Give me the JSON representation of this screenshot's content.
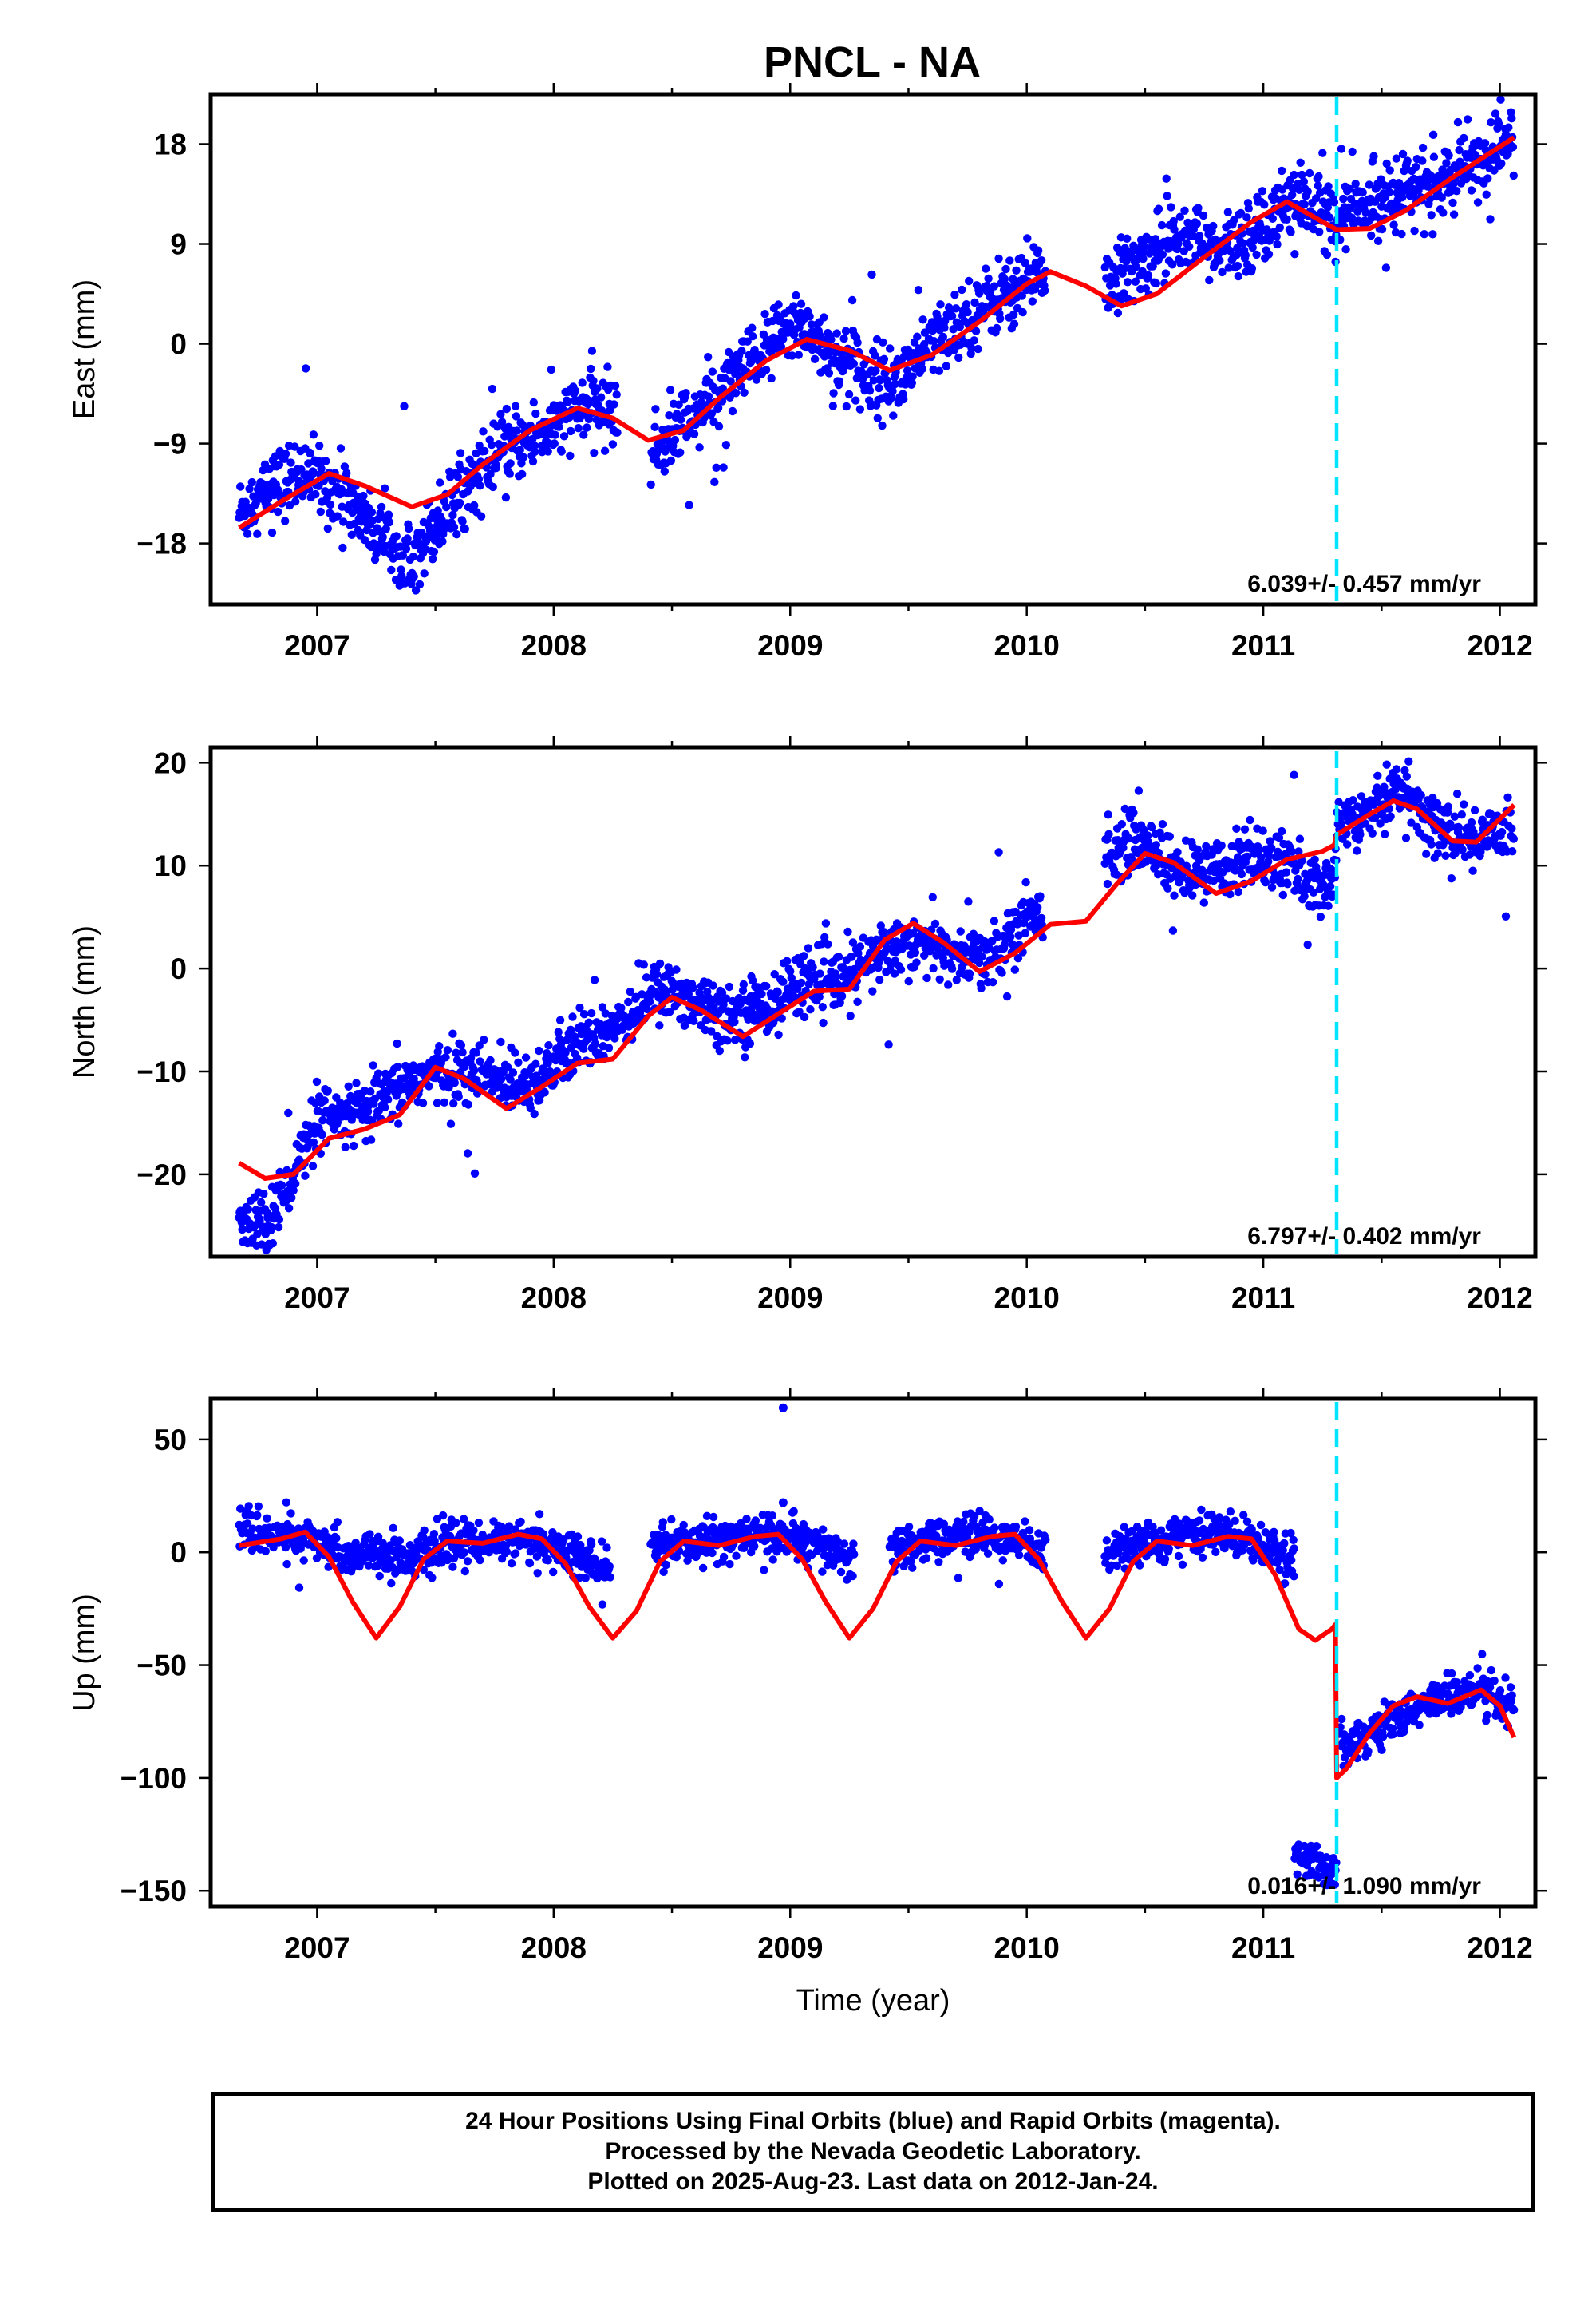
{
  "title": "PNCL - NA",
  "footer": {
    "lines": [
      "24 Hour Positions Using Final Orbits (blue) and Rapid Orbits (magenta).",
      "Processed by the Nevada Geodetic Laboratory.",
      "Plotted on 2025-Aug-23. Last data on 2012-Jan-24."
    ]
  },
  "chart_data": [
    {
      "type": "scatter",
      "name": "east",
      "ylabel": "East (mm)",
      "xlim": [
        2006.55,
        2012.15
      ],
      "ylim": [
        -23.5,
        22.5
      ],
      "yticks": [
        -18,
        -9,
        0,
        9,
        18
      ],
      "xticks": [
        2007,
        2008,
        2009,
        2010,
        2011,
        2012
      ],
      "rate_label": "6.039+/- 0.457 mm/yr",
      "break_x": 2011.31,
      "colors": {
        "points": "#0000ff",
        "fit": "#ff0000",
        "break": "#00e5ff"
      },
      "points_trend": [
        [
          2006.67,
          -15.2
        ],
        [
          2006.8,
          -13.0
        ],
        [
          2006.95,
          -11.5
        ],
        [
          2007.1,
          -13.5
        ],
        [
          2007.25,
          -16.8
        ],
        [
          2007.4,
          -18.8
        ],
        [
          2007.55,
          -15.0
        ],
        [
          2007.7,
          -11.2
        ],
        [
          2007.85,
          -9.0
        ],
        [
          2008.0,
          -7.5
        ],
        [
          2008.15,
          -5.5
        ],
        [
          2008.25,
          -6.0
        ],
        [
          2008.4,
          -10.5
        ],
        [
          2008.5,
          -8.0
        ],
        [
          2008.65,
          -5.5
        ],
        [
          2008.8,
          -2.5
        ],
        [
          2008.95,
          0.5
        ],
        [
          2009.05,
          2.0
        ],
        [
          2009.2,
          -1.5
        ],
        [
          2009.35,
          -3.0
        ],
        [
          2009.45,
          -3.5
        ],
        [
          2009.6,
          0.0
        ],
        [
          2009.75,
          2.5
        ],
        [
          2009.9,
          4.5
        ],
        [
          2010.05,
          6.5
        ],
        [
          2010.2,
          5.0
        ],
        [
          2010.35,
          5.5
        ],
        [
          2010.5,
          7.5
        ],
        [
          2010.65,
          10.5
        ],
        [
          2010.8,
          8.0
        ],
        [
          2010.95,
          10.0
        ],
        [
          2011.1,
          13.0
        ],
        [
          2011.25,
          12.0
        ],
        [
          2011.31,
          11.5
        ],
        [
          2011.45,
          12.5
        ],
        [
          2011.55,
          14.0
        ],
        [
          2011.7,
          14.0
        ],
        [
          2011.85,
          15.5
        ],
        [
          2012.0,
          18.0
        ],
        [
          2012.06,
          18.5
        ]
      ],
      "points_spread": 1.6,
      "gaps": [
        [
          2008.27,
          2008.41
        ],
        [
          2010.08,
          2010.33
        ]
      ],
      "fit": [
        [
          2006.67,
          -16.6
        ],
        [
          2006.85,
          -14.2
        ],
        [
          2007.05,
          -11.7
        ],
        [
          2007.2,
          -12.8
        ],
        [
          2007.4,
          -14.7
        ],
        [
          2007.55,
          -13.6
        ],
        [
          2007.7,
          -10.9
        ],
        [
          2007.9,
          -7.8
        ],
        [
          2008.1,
          -5.8
        ],
        [
          2008.25,
          -6.7
        ],
        [
          2008.4,
          -8.7
        ],
        [
          2008.55,
          -7.8
        ],
        [
          2008.7,
          -4.9
        ],
        [
          2008.9,
          -1.5
        ],
        [
          2009.07,
          0.4
        ],
        [
          2009.25,
          -0.6
        ],
        [
          2009.42,
          -2.4
        ],
        [
          2009.6,
          -1.0
        ],
        [
          2009.8,
          2.0
        ],
        [
          2010.0,
          5.4
        ],
        [
          2010.1,
          6.5
        ],
        [
          2010.25,
          5.2
        ],
        [
          2010.4,
          3.4
        ],
        [
          2010.55,
          4.5
        ],
        [
          2010.75,
          7.8
        ],
        [
          2010.95,
          11.0
        ],
        [
          2011.1,
          12.8
        ],
        [
          2011.25,
          11.0
        ],
        [
          2011.31,
          10.3
        ],
        [
          2011.45,
          10.4
        ],
        [
          2011.6,
          12.0
        ],
        [
          2011.8,
          15.0
        ],
        [
          2012.06,
          18.6
        ]
      ]
    },
    {
      "type": "scatter",
      "name": "north",
      "ylabel": "North (mm)",
      "xlim": [
        2006.55,
        2012.15
      ],
      "ylim": [
        -28,
        21.5
      ],
      "yticks": [
        -20,
        -10,
        0,
        10,
        20
      ],
      "xticks": [
        2007,
        2008,
        2009,
        2010,
        2011,
        2012
      ],
      "rate_label": "6.797+/- 0.402 mm/yr",
      "break_x": 2011.31,
      "colors": {
        "points": "#0000ff",
        "fit": "#ff0000",
        "break": "#00e5ff"
      },
      "points_trend": [
        [
          2006.67,
          -25.0
        ],
        [
          2006.8,
          -24.5
        ],
        [
          2006.9,
          -20.0
        ],
        [
          2007.0,
          -15.0
        ],
        [
          2007.15,
          -14.5
        ],
        [
          2007.3,
          -12.5
        ],
        [
          2007.45,
          -10.5
        ],
        [
          2007.6,
          -10.0
        ],
        [
          2007.8,
          -11.0
        ],
        [
          2007.95,
          -10.5
        ],
        [
          2008.1,
          -7.5
        ],
        [
          2008.25,
          -5.5
        ],
        [
          2008.45,
          -2.0
        ],
        [
          2008.6,
          -3.0
        ],
        [
          2008.75,
          -4.5
        ],
        [
          2008.9,
          -3.5
        ],
        [
          2009.05,
          -1.0
        ],
        [
          2009.2,
          -1.5
        ],
        [
          2009.35,
          1.0
        ],
        [
          2009.5,
          3.0
        ],
        [
          2009.65,
          1.5
        ],
        [
          2009.8,
          1.0
        ],
        [
          2009.95,
          3.5
        ],
        [
          2010.05,
          5.5
        ],
        [
          2010.35,
          11.5
        ],
        [
          2010.5,
          12.5
        ],
        [
          2010.65,
          9.0
        ],
        [
          2010.8,
          9.5
        ],
        [
          2010.95,
          11.0
        ],
        [
          2011.1,
          10.0
        ],
        [
          2011.2,
          8.0
        ],
        [
          2011.3,
          8.5
        ],
        [
          2011.32,
          14.0
        ],
        [
          2011.5,
          16.5
        ],
        [
          2011.6,
          17.5
        ],
        [
          2011.7,
          14.0
        ],
        [
          2011.85,
          12.5
        ],
        [
          2012.0,
          13.5
        ],
        [
          2012.06,
          14.5
        ]
      ],
      "points_spread": 1.5,
      "gaps": [
        [
          2010.07,
          2010.33
        ]
      ],
      "fit": [
        [
          2006.67,
          -18.9
        ],
        [
          2006.78,
          -20.4
        ],
        [
          2006.9,
          -20.0
        ],
        [
          2007.05,
          -16.5
        ],
        [
          2007.2,
          -15.6
        ],
        [
          2007.35,
          -14.2
        ],
        [
          2007.5,
          -9.6
        ],
        [
          2007.62,
          -10.7
        ],
        [
          2007.8,
          -13.6
        ],
        [
          2007.95,
          -11.5
        ],
        [
          2008.1,
          -9.2
        ],
        [
          2008.25,
          -8.8
        ],
        [
          2008.4,
          -4.6
        ],
        [
          2008.5,
          -2.8
        ],
        [
          2008.62,
          -4.0
        ],
        [
          2008.8,
          -6.6
        ],
        [
          2008.95,
          -4.4
        ],
        [
          2009.1,
          -2.2
        ],
        [
          2009.25,
          -2.0
        ],
        [
          2009.4,
          2.8
        ],
        [
          2009.52,
          4.4
        ],
        [
          2009.65,
          2.5
        ],
        [
          2009.8,
          -0.3
        ],
        [
          2009.95,
          1.5
        ],
        [
          2010.1,
          4.3
        ],
        [
          2010.25,
          4.6
        ],
        [
          2010.38,
          8.2
        ],
        [
          2010.5,
          11.2
        ],
        [
          2010.62,
          10.3
        ],
        [
          2010.8,
          7.3
        ],
        [
          2010.95,
          8.5
        ],
        [
          2011.1,
          10.6
        ],
        [
          2011.25,
          11.4
        ],
        [
          2011.3,
          12.0
        ],
        [
          2011.31,
          13.0
        ],
        [
          2011.45,
          15.0
        ],
        [
          2011.55,
          16.3
        ],
        [
          2011.65,
          15.5
        ],
        [
          2011.8,
          12.4
        ],
        [
          2011.9,
          12.3
        ],
        [
          2012.06,
          15.9
        ]
      ]
    },
    {
      "type": "scatter",
      "name": "up",
      "ylabel": "Up (mm)",
      "xlabel": "Time (year)",
      "xlim": [
        2006.55,
        2012.15
      ],
      "ylim": [
        -157,
        68
      ],
      "yticks": [
        -150,
        -100,
        -50,
        0,
        50
      ],
      "xticks": [
        2007,
        2008,
        2009,
        2010,
        2011,
        2012
      ],
      "rate_label": "0.016+/- 1.090 mm/yr",
      "break_x": 2011.31,
      "colors": {
        "points": "#0000ff",
        "fit": "#ff0000",
        "break": "#00e5ff"
      },
      "segments": [
        [
          2006.67,
          2008.24
        ],
        [
          2008.41,
          2009.27
        ],
        [
          2009.42,
          2010.08
        ],
        [
          2010.33,
          2011.13
        ],
        [
          2011.13,
          2011.31
        ],
        [
          2011.32,
          2012.06
        ]
      ],
      "segment_levels": [
        [
          2006.67,
          9
        ],
        [
          2006.9,
          7
        ],
        [
          2007.1,
          0
        ],
        [
          2007.4,
          -2
        ],
        [
          2007.6,
          4
        ],
        [
          2007.9,
          6
        ],
        [
          2008.1,
          -2
        ],
        [
          2008.24,
          -10
        ],
        [
          2008.41,
          2
        ],
        [
          2008.7,
          6
        ],
        [
          2008.95,
          8
        ],
        [
          2009.1,
          3
        ],
        [
          2009.27,
          -4
        ],
        [
          2009.42,
          0
        ],
        [
          2009.7,
          8
        ],
        [
          2009.95,
          6
        ],
        [
          2010.08,
          -1
        ],
        [
          2010.33,
          1
        ],
        [
          2010.6,
          6
        ],
        [
          2010.85,
          9
        ],
        [
          2011.0,
          3
        ],
        [
          2011.13,
          -3
        ],
        [
          2011.131,
          -135
        ],
        [
          2011.31,
          -140
        ],
        [
          2011.32,
          -85
        ],
        [
          2011.5,
          -78
        ],
        [
          2011.7,
          -66
        ],
        [
          2011.9,
          -62
        ],
        [
          2012.06,
          -70
        ]
      ],
      "points_spread": 4.5,
      "outliers": [
        [
          2008.97,
          64
        ],
        [
          2008.97,
          22
        ]
      ],
      "fit": [
        [
          2006.67,
          3
        ],
        [
          2006.85,
          6
        ],
        [
          2006.95,
          9
        ],
        [
          2007.05,
          -2
        ],
        [
          2007.15,
          -22
        ],
        [
          2007.25,
          -38
        ],
        [
          2007.35,
          -24
        ],
        [
          2007.45,
          -3
        ],
        [
          2007.55,
          5
        ],
        [
          2007.7,
          4
        ],
        [
          2007.85,
          8
        ],
        [
          2007.95,
          6
        ],
        [
          2008.05,
          -5
        ],
        [
          2008.15,
          -24
        ],
        [
          2008.25,
          -38
        ],
        [
          2008.35,
          -26
        ],
        [
          2008.45,
          -4
        ],
        [
          2008.55,
          5
        ],
        [
          2008.7,
          3
        ],
        [
          2008.85,
          7
        ],
        [
          2008.95,
          8
        ],
        [
          2009.05,
          -3
        ],
        [
          2009.15,
          -22
        ],
        [
          2009.25,
          -38
        ],
        [
          2009.35,
          -25
        ],
        [
          2009.45,
          -4
        ],
        [
          2009.55,
          5
        ],
        [
          2009.7,
          3
        ],
        [
          2009.85,
          7
        ],
        [
          2009.95,
          8
        ],
        [
          2010.05,
          -3
        ],
        [
          2010.15,
          -22
        ],
        [
          2010.25,
          -38
        ],
        [
          2010.35,
          -25
        ],
        [
          2010.45,
          -4
        ],
        [
          2010.55,
          5
        ],
        [
          2010.7,
          3
        ],
        [
          2010.85,
          7
        ],
        [
          2010.95,
          6
        ],
        [
          2011.05,
          -10
        ],
        [
          2011.15,
          -34
        ],
        [
          2011.22,
          -39
        ],
        [
          2011.29,
          -34
        ],
        [
          2011.305,
          -32
        ],
        [
          2011.31,
          -100
        ],
        [
          2011.35,
          -96
        ],
        [
          2011.45,
          -80
        ],
        [
          2011.55,
          -68
        ],
        [
          2011.65,
          -64
        ],
        [
          2011.78,
          -67
        ],
        [
          2011.92,
          -61
        ],
        [
          2012.0,
          -68
        ],
        [
          2012.06,
          -82
        ]
      ]
    }
  ]
}
